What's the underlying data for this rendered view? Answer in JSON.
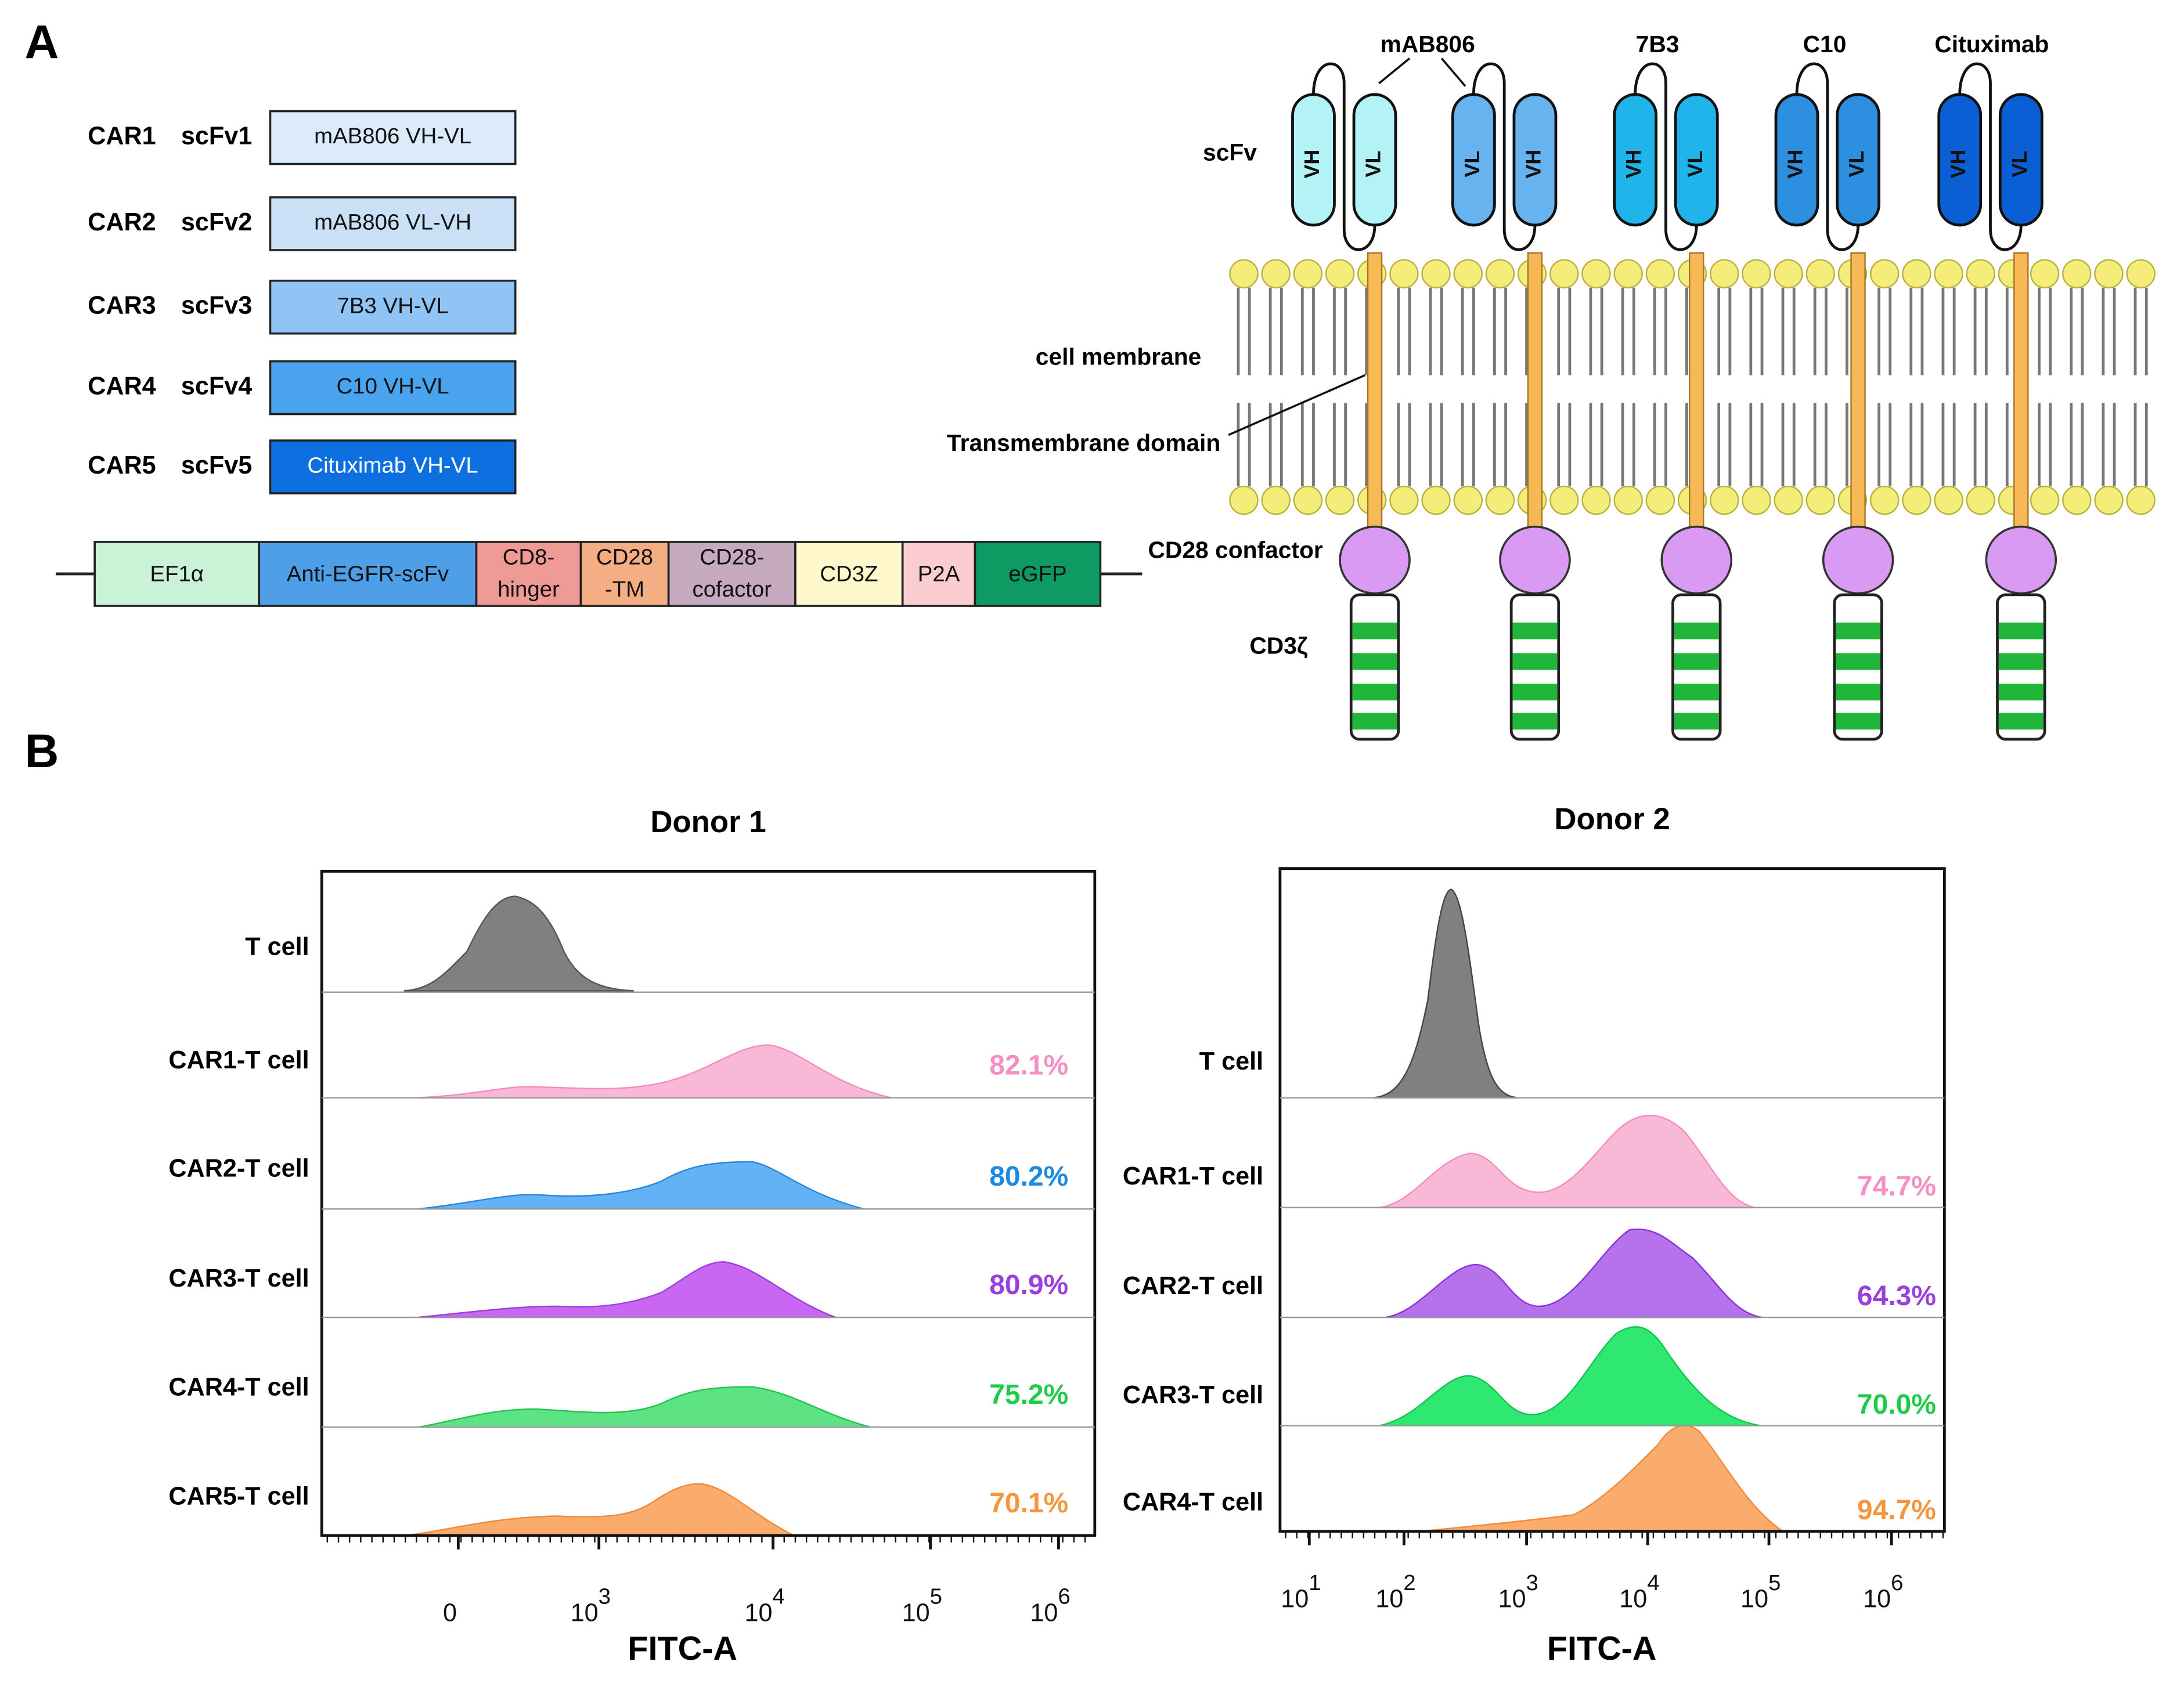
{
  "panel_a": {
    "label": "A",
    "constructs": [
      {
        "car": "CAR1",
        "scfv": "scFv1",
        "box": "mAB806 VH-VL"
      },
      {
        "car": "CAR2",
        "scfv": "scFv2",
        "box": "mAB806 VL-VH"
      },
      {
        "car": "CAR3",
        "scfv": "scFv3",
        "box": "7B3 VH-VL"
      },
      {
        "car": "CAR4",
        "scfv": "scFv4",
        "box": "C10 VH-VL"
      },
      {
        "car": "CAR5",
        "scfv": "scFv5",
        "box": "Cituximab VH-VL"
      }
    ],
    "vector": [
      [
        "EF1α"
      ],
      [
        "Anti-EGFR-scFv"
      ],
      [
        "CD8-",
        "hinger"
      ],
      [
        "CD28",
        "-TM"
      ],
      [
        "CD28-",
        "cofactor"
      ],
      [
        "CD3Z"
      ],
      [
        "P2A"
      ],
      [
        "eGFP"
      ]
    ],
    "antibodies": [
      "mAB806",
      "7B3",
      "C10",
      "Cituximab"
    ],
    "domains": [
      [
        "VH",
        "VL"
      ],
      [
        "VL",
        "VH"
      ],
      [
        "VH",
        "VL"
      ],
      [
        "VH",
        "VL"
      ],
      [
        "VH",
        "VL"
      ]
    ],
    "labels": {
      "scfv": "scFv",
      "cell_membrane": "cell membrane",
      "transmembrane": "Transmembrane domain",
      "cd28": "CD28 confactor",
      "cd3z": "CD3ζ"
    }
  },
  "panel_b": {
    "label": "B",
    "donors": [
      {
        "title": "Donor 1",
        "xlabel": "FITC-A",
        "rows": [
          {
            "label": "T cell"
          },
          {
            "label": "CAR1-T cell",
            "percent": "82.1%"
          },
          {
            "label": "CAR2-T cell",
            "percent": "80.2%"
          },
          {
            "label": "CAR3-T cell",
            "percent": "80.9%"
          },
          {
            "label": "CAR4-T cell",
            "percent": "75.2%"
          },
          {
            "label": "CAR5-T cell",
            "percent": "70.1%"
          }
        ],
        "ticks": [
          {
            "base": "0"
          },
          {
            "base": "10",
            "exp": "3"
          },
          {
            "base": "10",
            "exp": "4"
          },
          {
            "base": "10",
            "exp": "5"
          },
          {
            "base": "10",
            "exp": "6"
          }
        ]
      },
      {
        "title": "Donor 2",
        "xlabel": "FITC-A",
        "rows": [
          {
            "label": "T cell"
          },
          {
            "label": "CAR1-T cell",
            "percent": "74.7%"
          },
          {
            "label": "CAR2-T cell",
            "percent": "64.3%"
          },
          {
            "label": "CAR3-T cell",
            "percent": "70.0%"
          },
          {
            "label": "CAR4-T cell",
            "percent": "94.7%"
          }
        ],
        "ticks": [
          {
            "base": "10",
            "exp": "1"
          },
          {
            "base": "10",
            "exp": "2"
          },
          {
            "base": "10",
            "exp": "3"
          },
          {
            "base": "10",
            "exp": "4"
          },
          {
            "base": "10",
            "exp": "5"
          },
          {
            "base": "10",
            "exp": "6"
          }
        ]
      }
    ]
  }
}
